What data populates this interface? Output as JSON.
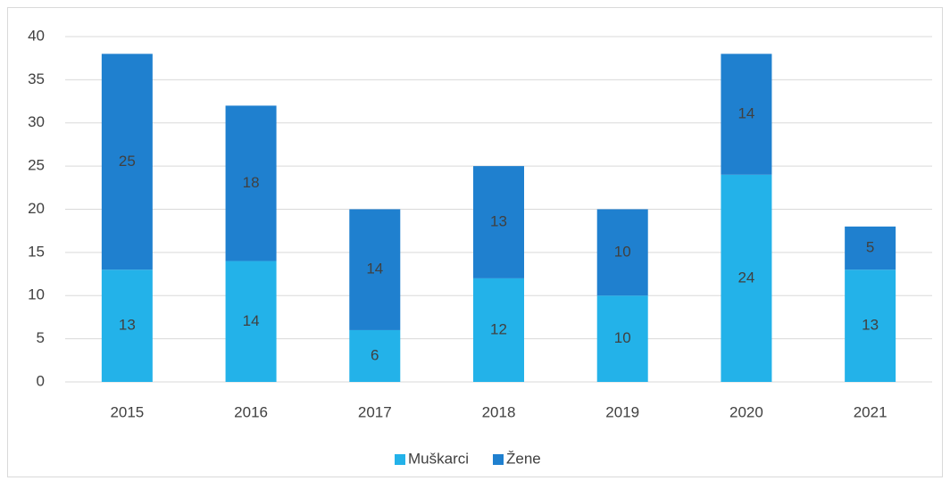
{
  "chart_data": {
    "type": "bar",
    "stacked": true,
    "categories": [
      "2015",
      "2016",
      "2017",
      "2018",
      "2019",
      "2020",
      "2021"
    ],
    "series": [
      {
        "name": "Muškarci",
        "color": "#23b2e9",
        "values": [
          13,
          14,
          6,
          12,
          10,
          24,
          13
        ]
      },
      {
        "name": "Žene",
        "color": "#1f80cf",
        "values": [
          25,
          18,
          14,
          13,
          10,
          14,
          5
        ]
      }
    ],
    "ylim": [
      0,
      40
    ],
    "yticks": [
      0,
      5,
      10,
      15,
      20,
      25,
      30,
      35,
      40
    ],
    "grid": true,
    "legend": "bottom"
  }
}
